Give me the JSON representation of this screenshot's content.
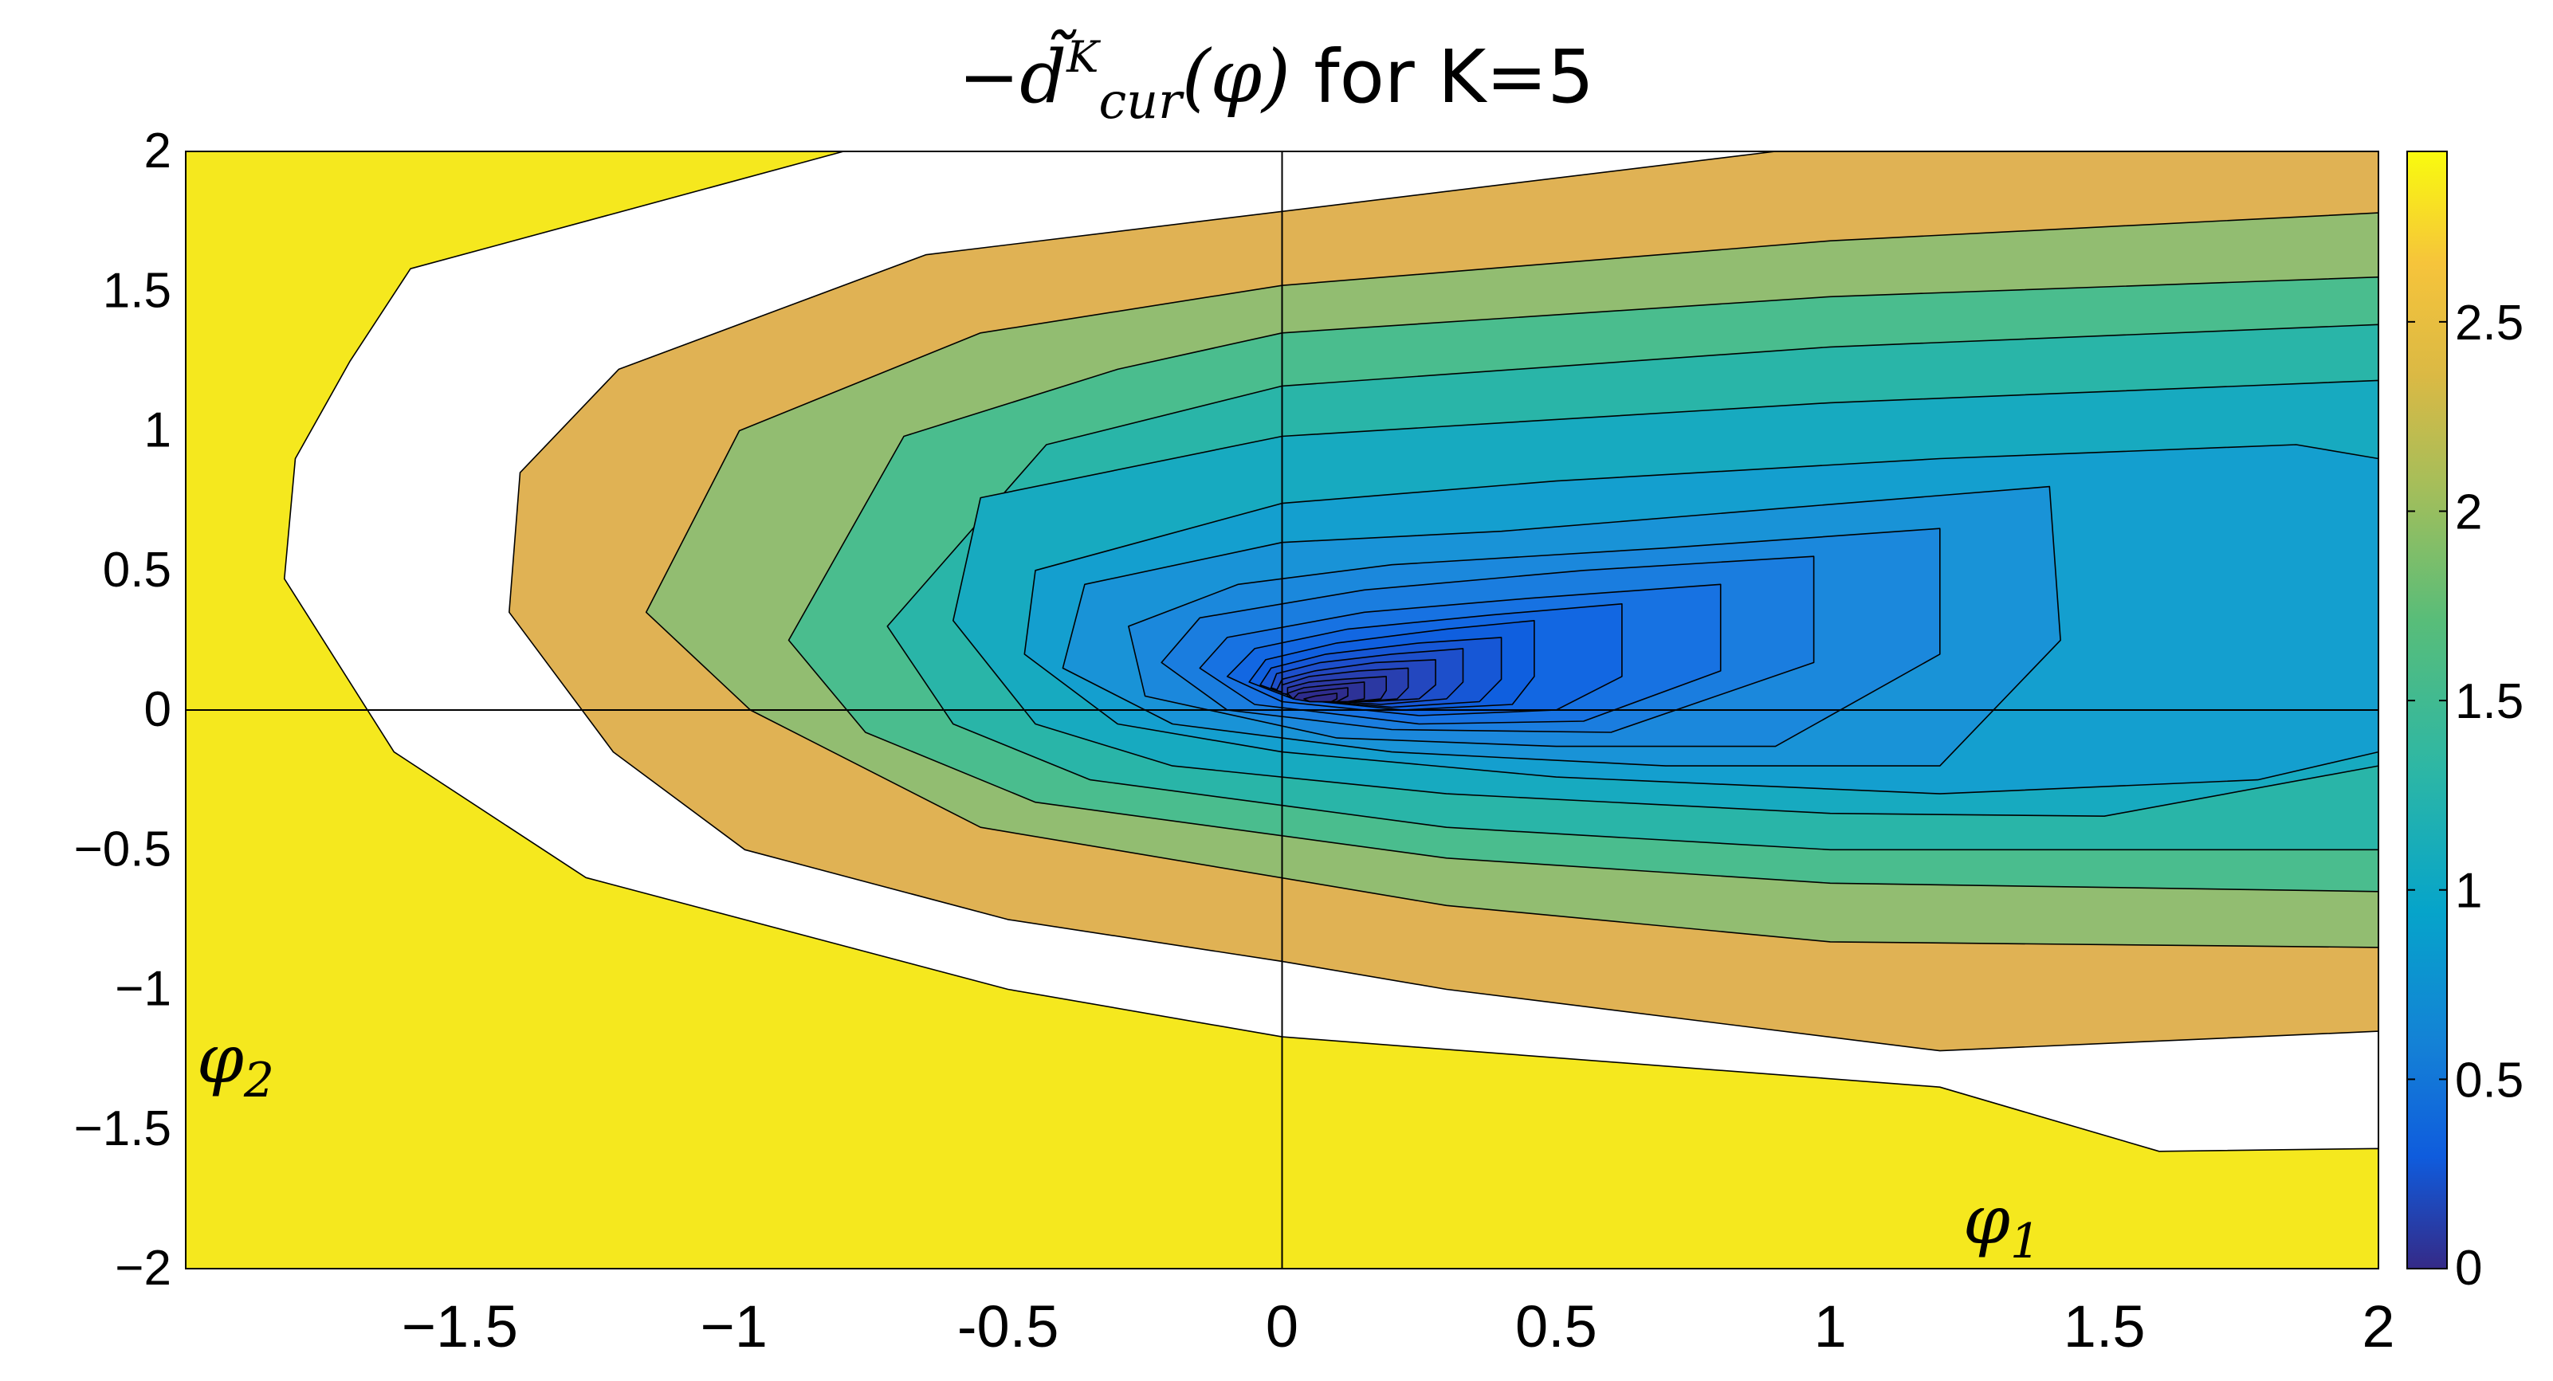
{
  "chart_data": {
    "type": "heatmap",
    "subtype": "filled-contour",
    "title": {
      "prefix": "−",
      "symbol": "d̃",
      "superscript": "K",
      "subscript": "cur",
      "argument": "(φ)",
      "suffix": " for K=5"
    },
    "xlabel": {
      "symbol": "φ",
      "subscript": "1"
    },
    "ylabel": {
      "symbol": "φ",
      "subscript": "2"
    },
    "xlim": [
      -2,
      2
    ],
    "ylim": [
      -2,
      2
    ],
    "xticks": [
      -1.5,
      -1,
      -0.5,
      0,
      0.5,
      1,
      1.5,
      2
    ],
    "xtick_labels": [
      "−1.5",
      "−1",
      "-0.5",
      "0",
      "0.5",
      "1",
      "1.5",
      "2"
    ],
    "yticks": [
      2,
      1.5,
      1,
      0.5,
      0,
      -0.5,
      -1,
      -1.5,
      -2
    ],
    "ytick_labels": [
      "2",
      "1.5",
      "1",
      "0.5",
      "0",
      "−0.5",
      "−1",
      "−1.5",
      "−2"
    ],
    "reference_lines": {
      "x": 0,
      "y": 0
    },
    "colorbar": {
      "range": [
        0,
        2.95
      ],
      "ticks": [
        0,
        0.5,
        1,
        1.5,
        2,
        2.5
      ],
      "tick_labels": [
        "0",
        "0.5",
        "1",
        "1.5",
        "2",
        "2.5"
      ],
      "colormap": "parula"
    },
    "contour_levels": [
      0.05,
      0.1,
      0.15,
      0.2,
      0.25,
      0.3,
      0.35,
      0.4,
      0.45,
      0.5,
      0.6,
      0.7,
      0.8,
      0.9,
      1.0,
      1.1,
      1.2,
      1.35,
      1.5,
      1.75,
      2.0,
      2.4
    ],
    "center": [
      0.1,
      0.02
    ],
    "contours": [
      {
        "level": 2.4,
        "color": "#f5e81e",
        "points": [
          [
            -2.0,
            2.0
          ],
          [
            -2.0,
            -2.0
          ],
          [
            2.0,
            -2.0
          ],
          [
            2.0,
            -1.57
          ],
          [
            1.6,
            -1.58
          ],
          [
            1.2,
            -1.35
          ],
          [
            0.0,
            -1.17
          ],
          [
            -0.5,
            -1.0
          ],
          [
            -1.27,
            -0.6
          ],
          [
            -1.62,
            -0.15
          ],
          [
            -1.82,
            0.47
          ],
          [
            -1.8,
            0.9
          ],
          [
            -1.7,
            1.25
          ],
          [
            -1.59,
            1.58
          ],
          [
            -0.8,
            2.0
          ]
        ]
      },
      {
        "level": 2.0,
        "color": "#e0b254",
        "points": [
          [
            2.0,
            2.0
          ],
          [
            2.0,
            -1.15
          ],
          [
            1.2,
            -1.22
          ],
          [
            0.3,
            -1.0
          ],
          [
            0.0,
            -0.9
          ],
          [
            -0.5,
            -0.75
          ],
          [
            -0.98,
            -0.5
          ],
          [
            -1.22,
            -0.15
          ],
          [
            -1.41,
            0.35
          ],
          [
            -1.39,
            0.85
          ],
          [
            -1.21,
            1.22
          ],
          [
            -0.65,
            1.63
          ],
          [
            0.9,
            2.0
          ]
        ]
      },
      {
        "level": 1.75,
        "color": "#92bd71",
        "points": [
          [
            2.0,
            1.78
          ],
          [
            1.0,
            1.68
          ],
          [
            0.0,
            1.52
          ],
          [
            -0.55,
            1.35
          ],
          [
            -0.99,
            1.0
          ],
          [
            -1.16,
            0.35
          ],
          [
            -0.97,
            0.0
          ],
          [
            -0.55,
            -0.42
          ],
          [
            0.3,
            -0.7
          ],
          [
            1.0,
            -0.83
          ],
          [
            2.0,
            -0.85
          ]
        ]
      },
      {
        "level": 1.5,
        "color": "#4abd8e",
        "points": [
          [
            2.0,
            1.55
          ],
          [
            1.0,
            1.48
          ],
          [
            0.0,
            1.35
          ],
          [
            -0.3,
            1.22
          ],
          [
            -0.69,
            0.98
          ],
          [
            -0.9,
            0.25
          ],
          [
            -0.76,
            -0.08
          ],
          [
            -0.45,
            -0.33
          ],
          [
            0.3,
            -0.53
          ],
          [
            1.0,
            -0.62
          ],
          [
            2.0,
            -0.65
          ]
        ]
      },
      {
        "level": 1.35,
        "color": "#29b5a8",
        "points": [
          [
            2.0,
            1.38
          ],
          [
            1.0,
            1.3
          ],
          [
            0.0,
            1.16
          ],
          [
            -0.43,
            0.95
          ],
          [
            -0.72,
            0.3
          ],
          [
            -0.6,
            -0.05
          ],
          [
            -0.35,
            -0.25
          ],
          [
            0.3,
            -0.42
          ],
          [
            1.0,
            -0.5
          ],
          [
            2.0,
            -0.5
          ]
        ]
      },
      {
        "level": 1.2,
        "color": "#17aac0",
        "points": [
          [
            2.0,
            1.18
          ],
          [
            1.0,
            1.1
          ],
          [
            0.0,
            0.98
          ],
          [
            -0.55,
            0.76
          ],
          [
            -0.6,
            0.32
          ],
          [
            -0.45,
            -0.05
          ],
          [
            -0.2,
            -0.2
          ],
          [
            0.3,
            -0.3
          ],
          [
            1.0,
            -0.37
          ],
          [
            1.5,
            -0.38
          ],
          [
            2.0,
            -0.2
          ]
        ]
      },
      {
        "level": 1.1,
        "color": "#149fcf",
        "points": [
          [
            1.85,
            0.95
          ],
          [
            1.2,
            0.9
          ],
          [
            0.5,
            0.82
          ],
          [
            0.0,
            0.74
          ],
          [
            -0.45,
            0.5
          ],
          [
            -0.47,
            0.2
          ],
          [
            -0.3,
            -0.05
          ],
          [
            0.0,
            -0.15
          ],
          [
            0.5,
            -0.24
          ],
          [
            1.2,
            -0.3
          ],
          [
            1.78,
            -0.25
          ],
          [
            2.0,
            -0.15
          ],
          [
            2.0,
            0.9
          ]
        ]
      },
      {
        "level": 1.0,
        "color": "#1993d7",
        "points": [
          [
            1.4,
            0.8
          ],
          [
            0.9,
            0.72
          ],
          [
            0.4,
            0.64
          ],
          [
            0.0,
            0.6
          ],
          [
            -0.36,
            0.45
          ],
          [
            -0.4,
            0.15
          ],
          [
            -0.2,
            -0.05
          ],
          [
            0.2,
            -0.15
          ],
          [
            0.7,
            -0.2
          ],
          [
            1.2,
            -0.2
          ],
          [
            1.42,
            0.25
          ]
        ]
      },
      {
        "level": 0.9,
        "color": "#1b88dc",
        "points": [
          [
            1.2,
            0.65
          ],
          [
            0.7,
            0.58
          ],
          [
            0.2,
            0.52
          ],
          [
            -0.08,
            0.45
          ],
          [
            -0.28,
            0.3
          ],
          [
            -0.25,
            0.05
          ],
          [
            0.1,
            -0.1
          ],
          [
            0.5,
            -0.13
          ],
          [
            0.9,
            -0.13
          ],
          [
            1.2,
            0.2
          ]
        ]
      },
      {
        "level": 0.8,
        "color": "#1a7ddf",
        "points": [
          [
            0.97,
            0.55
          ],
          [
            0.55,
            0.5
          ],
          [
            0.15,
            0.43
          ],
          [
            -0.15,
            0.33
          ],
          [
            -0.22,
            0.17
          ],
          [
            -0.1,
            0.0
          ],
          [
            0.2,
            -0.07
          ],
          [
            0.6,
            -0.08
          ],
          [
            0.97,
            0.17
          ]
        ]
      },
      {
        "level": 0.7,
        "color": "#1772e2",
        "points": [
          [
            0.8,
            0.45
          ],
          [
            0.45,
            0.4
          ],
          [
            0.15,
            0.35
          ],
          [
            -0.1,
            0.26
          ],
          [
            -0.15,
            0.15
          ],
          [
            -0.05,
            0.02
          ],
          [
            0.25,
            -0.05
          ],
          [
            0.55,
            -0.04
          ],
          [
            0.8,
            0.14
          ]
        ]
      },
      {
        "level": 0.6,
        "color": "#1267e2",
        "points": [
          [
            0.62,
            0.38
          ],
          [
            0.38,
            0.34
          ],
          [
            0.12,
            0.29
          ],
          [
            -0.05,
            0.22
          ],
          [
            -0.1,
            0.12
          ],
          [
            0.0,
            0.03
          ],
          [
            0.25,
            -0.02
          ],
          [
            0.5,
            0.0
          ],
          [
            0.62,
            0.12
          ]
        ]
      },
      {
        "level": 0.5,
        "color": "#0f5fdf",
        "points": [
          [
            0.46,
            0.32
          ],
          [
            0.3,
            0.29
          ],
          [
            0.1,
            0.24
          ],
          [
            -0.03,
            0.18
          ],
          [
            -0.06,
            0.1
          ],
          [
            0.02,
            0.04
          ],
          [
            0.22,
            0.0
          ],
          [
            0.42,
            0.02
          ],
          [
            0.46,
            0.12
          ]
        ]
      },
      {
        "level": 0.45,
        "color": "#1657d6",
        "points": [
          [
            0.4,
            0.26
          ],
          [
            0.25,
            0.24
          ],
          [
            0.08,
            0.2
          ],
          [
            -0.02,
            0.15
          ],
          [
            -0.04,
            0.09
          ],
          [
            0.03,
            0.04
          ],
          [
            0.2,
            0.01
          ],
          [
            0.36,
            0.03
          ],
          [
            0.4,
            0.11
          ]
        ]
      },
      {
        "level": 0.4,
        "color": "#1d4fcb",
        "points": [
          [
            0.33,
            0.22
          ],
          [
            0.2,
            0.2
          ],
          [
            0.07,
            0.17
          ],
          [
            -0.01,
            0.13
          ],
          [
            -0.02,
            0.08
          ],
          [
            0.04,
            0.04
          ],
          [
            0.18,
            0.02
          ],
          [
            0.3,
            0.04
          ],
          [
            0.33,
            0.1
          ]
        ]
      },
      {
        "level": 0.35,
        "color": "#2347bf",
        "points": [
          [
            0.28,
            0.18
          ],
          [
            0.17,
            0.17
          ],
          [
            0.06,
            0.14
          ],
          [
            0.0,
            0.11
          ],
          [
            -0.01,
            0.07
          ],
          [
            0.05,
            0.04
          ],
          [
            0.16,
            0.03
          ],
          [
            0.25,
            0.04
          ],
          [
            0.28,
            0.09
          ]
        ]
      },
      {
        "level": 0.3,
        "color": "#283fb0",
        "points": [
          [
            0.23,
            0.15
          ],
          [
            0.14,
            0.14
          ],
          [
            0.05,
            0.12
          ],
          [
            0.0,
            0.09
          ],
          [
            0.0,
            0.06
          ],
          [
            0.06,
            0.04
          ],
          [
            0.14,
            0.03
          ],
          [
            0.21,
            0.04
          ],
          [
            0.23,
            0.08
          ]
        ]
      },
      {
        "level": 0.25,
        "color": "#2b38a2",
        "points": [
          [
            0.19,
            0.12
          ],
          [
            0.11,
            0.11
          ],
          [
            0.05,
            0.1
          ],
          [
            0.01,
            0.08
          ],
          [
            0.01,
            0.05
          ],
          [
            0.06,
            0.04
          ],
          [
            0.13,
            0.03
          ],
          [
            0.18,
            0.04
          ],
          [
            0.19,
            0.07
          ]
        ]
      },
      {
        "level": 0.2,
        "color": "#2d3297",
        "points": [
          [
            0.15,
            0.1
          ],
          [
            0.09,
            0.09
          ],
          [
            0.04,
            0.08
          ],
          [
            0.01,
            0.06
          ],
          [
            0.02,
            0.04
          ],
          [
            0.07,
            0.03
          ],
          [
            0.12,
            0.03
          ],
          [
            0.15,
            0.04
          ],
          [
            0.15,
            0.06
          ]
        ]
      },
      {
        "level": 0.15,
        "color": "#2e2c8d",
        "points": [
          [
            0.12,
            0.08
          ],
          [
            0.07,
            0.07
          ],
          [
            0.03,
            0.06
          ],
          [
            0.02,
            0.04
          ],
          [
            0.05,
            0.03
          ],
          [
            0.1,
            0.03
          ],
          [
            0.12,
            0.05
          ]
        ]
      },
      {
        "level": 0.1,
        "color": "#302a86",
        "points": [
          [
            0.1,
            0.06
          ],
          [
            0.06,
            0.05
          ],
          [
            0.04,
            0.04
          ],
          [
            0.05,
            0.03
          ],
          [
            0.09,
            0.03
          ],
          [
            0.1,
            0.04
          ]
        ]
      }
    ]
  }
}
